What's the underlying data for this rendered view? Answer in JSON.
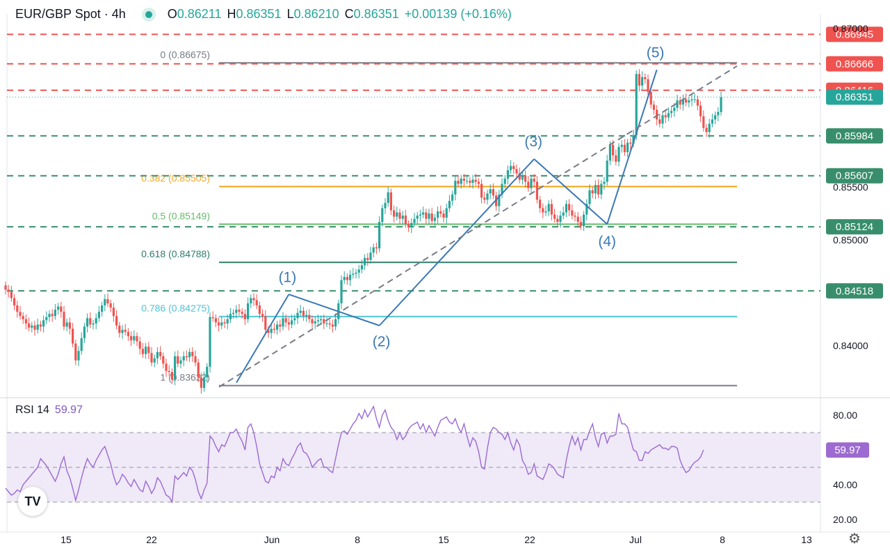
{
  "header": {
    "symbol": "EUR/GBP Spot · 4h",
    "open_label": "O",
    "open": "0.86211",
    "high_label": "H",
    "high": "0.86351",
    "low_label": "L",
    "low": "0.86210",
    "close_label": "C",
    "close": "0.86351",
    "change": "+0.00139 (+0.16%)"
  },
  "rsi_header": {
    "label": "RSI 14",
    "value": "59.97"
  },
  "logo_text": "TV",
  "settings_icon": "gear-icon",
  "colors": {
    "up": "#26a69a",
    "down": "#ef5350",
    "resistance": "#ef5350",
    "support": "#388e6c",
    "wave": "#3a78b5",
    "rsi": "#9c6ad0",
    "fib_0382": "#f5a623",
    "fib_05": "#66bb6a",
    "fib_0618": "#2e7d6b",
    "fib_0786": "#4fc3d4",
    "fib_ext": "#787b86"
  },
  "chart_data": [
    {
      "type": "candlestick",
      "title": "EUR/GBP Spot · 4h",
      "ylim": [
        0.8355,
        0.8716
      ],
      "y_ticks": [
        "0.84000",
        "0.85000",
        "0.85500",
        "0.87000"
      ],
      "x_ticks": [
        "15",
        "22",
        "Jun",
        "8",
        "15",
        "22",
        "Jul",
        "8",
        "13"
      ],
      "price_labels": [
        {
          "value": "0.86945",
          "kind": "resistance"
        },
        {
          "value": "0.86666",
          "kind": "resistance"
        },
        {
          "value": "0.86416",
          "kind": "resistance"
        },
        {
          "value": "0.86351",
          "kind": "current"
        },
        {
          "value": "0.85984",
          "kind": "support"
        },
        {
          "value": "0.85607",
          "kind": "support"
        },
        {
          "value": "0.85124",
          "kind": "support"
        },
        {
          "value": "0.84518",
          "kind": "support"
        }
      ],
      "fib_levels": [
        {
          "label": "0 (0.86675)",
          "value": 0.86675,
          "color": "#787b86"
        },
        {
          "label": "0.382 (0.85505)",
          "value": 0.85505,
          "color": "#f5a623"
        },
        {
          "label": "0.5 (0.85149)",
          "value": 0.85149,
          "color": "#66bb6a"
        },
        {
          "label": "0.618 (0.84788)",
          "value": 0.84788,
          "color": "#2e7d6b"
        },
        {
          "label": "0.786 (0.84275)",
          "value": 0.84275,
          "color": "#4fc3d4"
        },
        {
          "label": "1 (0.83622)",
          "value": 0.83622,
          "color": "#787b86"
        }
      ],
      "waves": [
        {
          "label": "(1)",
          "value": 0.84485
        },
        {
          "label": "(2)",
          "value": 0.8419
        },
        {
          "label": "(3)",
          "value": 0.85765
        },
        {
          "label": "(4)",
          "value": 0.8515
        },
        {
          "label": "(5)",
          "value": 0.8661
        }
      ],
      "closes": [
        0.8453,
        0.8451,
        0.8445,
        0.8438,
        0.8432,
        0.8428,
        0.8425,
        0.8421,
        0.8417,
        0.8419,
        0.8415,
        0.842,
        0.8418,
        0.8424,
        0.8427,
        0.843,
        0.8428,
        0.8434,
        0.8437,
        0.8432,
        0.8418,
        0.8422,
        0.8416,
        0.8402,
        0.8386,
        0.8395,
        0.8407,
        0.8418,
        0.8426,
        0.842,
        0.8421,
        0.8426,
        0.8432,
        0.8438,
        0.8444,
        0.844,
        0.8436,
        0.8428,
        0.8419,
        0.8412,
        0.8415,
        0.8413,
        0.8409,
        0.8405,
        0.8409,
        0.8404,
        0.8397,
        0.8392,
        0.8399,
        0.8393,
        0.8384,
        0.8388,
        0.8394,
        0.839,
        0.8383,
        0.8376,
        0.8375,
        0.8368,
        0.839,
        0.8383,
        0.8386,
        0.839,
        0.8389,
        0.8394,
        0.839,
        0.8384,
        0.837,
        0.836,
        0.837,
        0.838,
        0.8427,
        0.8426,
        0.8422,
        0.8419,
        0.8422,
        0.8421,
        0.8425,
        0.843,
        0.8431,
        0.8434,
        0.8432,
        0.843,
        0.8425,
        0.844,
        0.8445,
        0.8443,
        0.8438,
        0.843,
        0.8428,
        0.8415,
        0.8412,
        0.8416,
        0.8415,
        0.842,
        0.8418,
        0.8426,
        0.8422,
        0.842,
        0.8424,
        0.8426,
        0.8431,
        0.8433,
        0.8428,
        0.8429,
        0.8425,
        0.8421,
        0.8423,
        0.8424,
        0.8425,
        0.8421,
        0.8421,
        0.842,
        0.8418,
        0.8425,
        0.844,
        0.8462,
        0.8465,
        0.8462,
        0.8467,
        0.8468,
        0.8469,
        0.8472,
        0.8476,
        0.8483,
        0.8481,
        0.8488,
        0.8493,
        0.8492,
        0.8517,
        0.853,
        0.8535,
        0.8545,
        0.8528,
        0.8522,
        0.8526,
        0.852,
        0.8523,
        0.8515,
        0.8512,
        0.8516,
        0.852,
        0.8523,
        0.8524,
        0.8526,
        0.852,
        0.8525,
        0.8518,
        0.8521,
        0.8527,
        0.8525,
        0.8521,
        0.853,
        0.8537,
        0.8543,
        0.8556,
        0.8553,
        0.8558,
        0.8556,
        0.8556,
        0.8554,
        0.8557,
        0.8555,
        0.8553,
        0.854,
        0.8538,
        0.8544,
        0.8548,
        0.8542,
        0.8532,
        0.8543,
        0.8553,
        0.8558,
        0.8566,
        0.857,
        0.8567,
        0.8563,
        0.8557,
        0.8561,
        0.8555,
        0.8549,
        0.8558,
        0.8555,
        0.8538,
        0.853,
        0.8526,
        0.8527,
        0.8534,
        0.8524,
        0.852,
        0.8517,
        0.8523,
        0.8526,
        0.8534,
        0.8528,
        0.8523,
        0.8522,
        0.8517,
        0.8513,
        0.8524,
        0.8534,
        0.8547,
        0.8544,
        0.8552,
        0.8543,
        0.8553,
        0.8555,
        0.8575,
        0.859,
        0.858,
        0.8574,
        0.8588,
        0.859,
        0.8583,
        0.8592,
        0.8591,
        0.8599,
        0.8657,
        0.8646,
        0.8654,
        0.8652,
        0.864,
        0.8628,
        0.8623,
        0.8614,
        0.861,
        0.8618,
        0.8616,
        0.862,
        0.8622,
        0.8625,
        0.8632,
        0.8628,
        0.8633,
        0.863,
        0.8632,
        0.8633,
        0.8633,
        0.8627,
        0.8617,
        0.8606,
        0.8602,
        0.861,
        0.8614,
        0.8618,
        0.8621,
        0.8635
      ],
      "rsi": {
        "name": "RSI 14",
        "value": "59.97",
        "ylim": [
          15,
          90
        ],
        "y_ticks": [
          "80.00",
          "40.00",
          "20.00"
        ],
        "bands": [
          70,
          50,
          30
        ],
        "values": [
          38,
          36,
          34,
          35,
          37,
          36,
          40,
          42,
          44,
          46,
          48,
          50,
          55,
          53,
          51,
          48,
          45,
          42,
          46,
          52,
          56,
          48,
          44,
          38,
          31,
          37,
          44,
          50,
          55,
          52,
          50,
          54,
          57,
          60,
          62,
          57,
          52,
          45,
          40,
          42,
          46,
          44,
          41,
          39,
          43,
          40,
          37,
          36,
          42,
          39,
          35,
          38,
          44,
          42,
          38,
          34,
          33,
          30,
          45,
          43,
          45,
          47,
          45,
          50,
          48,
          43,
          36,
          32,
          37,
          41,
          68,
          66,
          62,
          59,
          63,
          62,
          66,
          70,
          70,
          72,
          68,
          65,
          60,
          73,
          75,
          70,
          62,
          52,
          47,
          42,
          41,
          45,
          44,
          50,
          48,
          55,
          52,
          51,
          55,
          58,
          62,
          64,
          59,
          58,
          55,
          50,
          52,
          54,
          55,
          50,
          50,
          48,
          47,
          55,
          63,
          70,
          71,
          69,
          72,
          75,
          77,
          81,
          78,
          83,
          79,
          82,
          85,
          78,
          73,
          80,
          83,
          77,
          73,
          71,
          66,
          70,
          66,
          68,
          72,
          74,
          75,
          76,
          72,
          75,
          70,
          74,
          71,
          68,
          73,
          77,
          78,
          79,
          76,
          75,
          78,
          73,
          70,
          75,
          68,
          62,
          67,
          65,
          59,
          50,
          49,
          61,
          70,
          73,
          72,
          70,
          69,
          66,
          70,
          64,
          60,
          66,
          63,
          54,
          51,
          46,
          47,
          52,
          45,
          44,
          43,
          47,
          52,
          51,
          49,
          46,
          45,
          44,
          54,
          62,
          68,
          63,
          67,
          60,
          66,
          66,
          71,
          75,
          67,
          62,
          69,
          70,
          64,
          68,
          68,
          69,
          81,
          75,
          75,
          73,
          66,
          60,
          59,
          54,
          54,
          59,
          58,
          60,
          61,
          62,
          63,
          61,
          61,
          60,
          62,
          62,
          61,
          54,
          50,
          47,
          48,
          51,
          53,
          54,
          56,
          60
        ]
      }
    }
  ]
}
